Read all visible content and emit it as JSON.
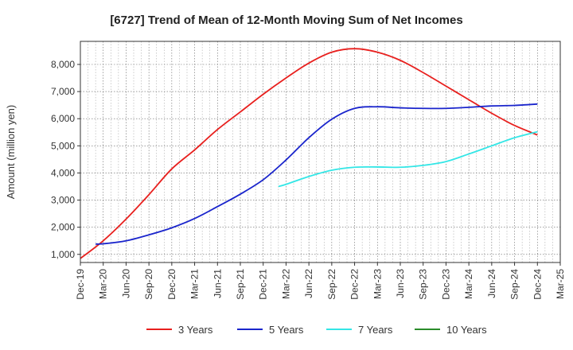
{
  "chart_data": {
    "type": "line",
    "title": "[6727]  Trend of Mean of 12-Month Moving Sum of Net Incomes",
    "xlabel": "",
    "ylabel": "Amount (million yen)",
    "x_start": "Dec-19",
    "x_tick_labels": [
      "Dec-19",
      "Mar-20",
      "Jun-20",
      "Sep-20",
      "Dec-20",
      "Mar-21",
      "Jun-21",
      "Sep-21",
      "Dec-21",
      "Mar-22",
      "Jun-22",
      "Sep-22",
      "Dec-22",
      "Mar-23",
      "Jun-23",
      "Sep-23",
      "Dec-23",
      "Mar-24",
      "Jun-24",
      "Sep-24",
      "Dec-24",
      "Mar-25"
    ],
    "y_ticks": [
      1000,
      2000,
      3000,
      4000,
      5000,
      6000,
      7000,
      8000
    ],
    "y_tick_labels": [
      "1,000",
      "2,000",
      "3,000",
      "4,000",
      "5,000",
      "6,000",
      "7,000",
      "8,000"
    ],
    "ylim": [
      700,
      8850
    ],
    "grid": true,
    "legend_position": "bottom",
    "series": [
      {
        "name": "3 Years",
        "color": "#e8201e",
        "points": [
          [
            "Dec-19",
            850
          ],
          [
            "Mar-20",
            1500
          ],
          [
            "Jun-20",
            2300
          ],
          [
            "Sep-20",
            3200
          ],
          [
            "Dec-20",
            4150
          ],
          [
            "Mar-21",
            4850
          ],
          [
            "Jun-21",
            5600
          ],
          [
            "Sep-21",
            6250
          ],
          [
            "Dec-21",
            6900
          ],
          [
            "Mar-22",
            7500
          ],
          [
            "Jun-22",
            8050
          ],
          [
            "Sep-22",
            8450
          ],
          [
            "Dec-22",
            8580
          ],
          [
            "Mar-23",
            8450
          ],
          [
            "Jun-23",
            8150
          ],
          [
            "Sep-23",
            7700
          ],
          [
            "Dec-23",
            7200
          ],
          [
            "Mar-24",
            6700
          ],
          [
            "Jun-24",
            6200
          ],
          [
            "Sep-24",
            5750
          ],
          [
            "Dec-24",
            5400
          ]
        ]
      },
      {
        "name": "5 Years",
        "color": "#1a25cc",
        "points": [
          [
            "Feb-20",
            1380
          ],
          [
            "Mar-20",
            1390
          ],
          [
            "Jun-20",
            1500
          ],
          [
            "Sep-20",
            1720
          ],
          [
            "Dec-20",
            1980
          ],
          [
            "Mar-21",
            2320
          ],
          [
            "Jun-21",
            2760
          ],
          [
            "Sep-21",
            3220
          ],
          [
            "Dec-21",
            3750
          ],
          [
            "Mar-22",
            4480
          ],
          [
            "Jun-22",
            5300
          ],
          [
            "Sep-22",
            5980
          ],
          [
            "Dec-22",
            6380
          ],
          [
            "Mar-23",
            6440
          ],
          [
            "Jun-23",
            6400
          ],
          [
            "Sep-23",
            6380
          ],
          [
            "Dec-23",
            6380
          ],
          [
            "Mar-24",
            6420
          ],
          [
            "Jun-24",
            6470
          ],
          [
            "Sep-24",
            6490
          ],
          [
            "Dec-24",
            6540
          ]
        ]
      },
      {
        "name": "7 Years",
        "color": "#33e6e6",
        "points": [
          [
            "Feb-22",
            3500
          ],
          [
            "Mar-22",
            3580
          ],
          [
            "Jun-22",
            3870
          ],
          [
            "Sep-22",
            4100
          ],
          [
            "Dec-22",
            4210
          ],
          [
            "Mar-23",
            4220
          ],
          [
            "Jun-23",
            4210
          ],
          [
            "Sep-23",
            4280
          ],
          [
            "Dec-23",
            4420
          ],
          [
            "Mar-24",
            4700
          ],
          [
            "Jun-24",
            5000
          ],
          [
            "Sep-24",
            5300
          ],
          [
            "Dec-24",
            5520
          ]
        ]
      },
      {
        "name": "10 Years",
        "color": "#2a8c2a",
        "points": []
      }
    ]
  }
}
